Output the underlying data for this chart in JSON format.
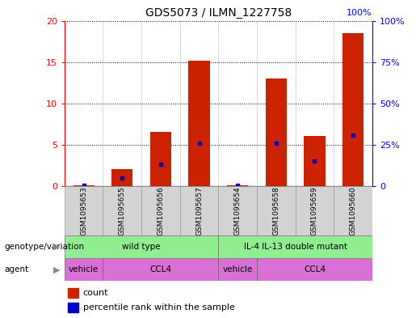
{
  "title": "GDS5073 / ILMN_1227758",
  "samples": [
    "GSM1095653",
    "GSM1095655",
    "GSM1095656",
    "GSM1095657",
    "GSM1095654",
    "GSM1095658",
    "GSM1095659",
    "GSM1095660"
  ],
  "counts": [
    0.05,
    2.0,
    6.5,
    15.2,
    0.05,
    13.0,
    6.1,
    18.5
  ],
  "percentile_ranks": [
    0.5,
    5.0,
    13.0,
    26.0,
    0.5,
    26.0,
    15.0,
    31.0
  ],
  "genotype_groups": [
    {
      "label": "wild type",
      "start": 0,
      "end": 4,
      "color": "#90EE90"
    },
    {
      "label": "IL-4 IL-13 double mutant",
      "start": 4,
      "end": 8,
      "color": "#90EE90"
    }
  ],
  "agent_groups": [
    {
      "label": "vehicle",
      "start": 0,
      "end": 1,
      "color": "#DA70D6"
    },
    {
      "label": "CCL4",
      "start": 1,
      "end": 4,
      "color": "#DA70D6"
    },
    {
      "label": "vehicle",
      "start": 4,
      "end": 5,
      "color": "#DA70D6"
    },
    {
      "label": "CCL4",
      "start": 5,
      "end": 8,
      "color": "#DA70D6"
    }
  ],
  "left_ylim": [
    0,
    20
  ],
  "right_ylim": [
    0,
    100
  ],
  "left_yticks": [
    0,
    5,
    10,
    15,
    20
  ],
  "right_yticks": [
    0,
    25,
    50,
    75,
    100
  ],
  "bar_color": "#CC2200",
  "percentile_color": "#0000CC",
  "bar_width": 0.55,
  "background_color": "#ffffff",
  "genotype_label": "genotype/variation",
  "agent_label": "agent",
  "legend_count": "count",
  "legend_percentile": "percentile rank within the sample",
  "right_top_label": "100%"
}
